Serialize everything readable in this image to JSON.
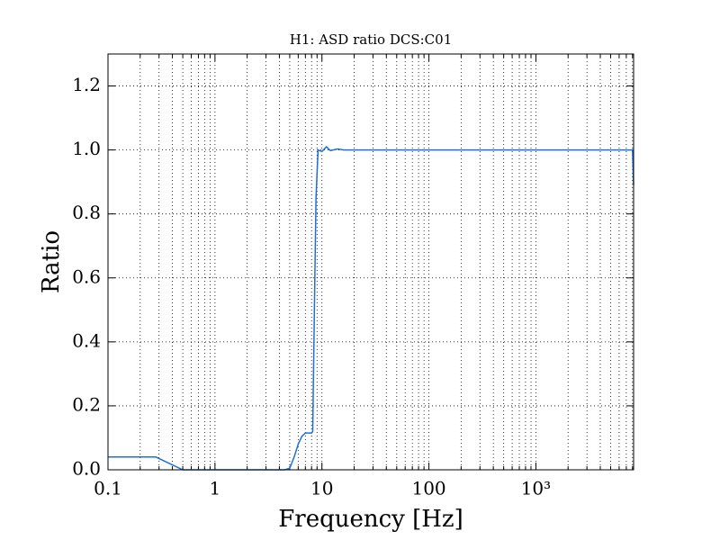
{
  "chart_data": {
    "type": "line",
    "title": "H1: ASD ratio DCS:C01",
    "xlabel": "Frequency [Hz]",
    "ylabel": "Ratio",
    "xscale": "log",
    "grid": true,
    "minor_grid": true,
    "xlim": [
      0.1,
      8192
    ],
    "ylim": [
      0,
      1.3
    ],
    "xticks": [
      0.1,
      1,
      10,
      100,
      {
        "value": 1000,
        "label": "10³"
      }
    ],
    "yticks": [
      {
        "value": 0,
        "label": "0.0"
      },
      0.2,
      0.4,
      0.6,
      0.8,
      {
        "value": 1,
        "label": "1.0"
      },
      1.2
    ],
    "series": [
      {
        "name": "ratio",
        "color": "#1f6fd6",
        "x": [
          0.1,
          0.28,
          0.5,
          4.5,
          5.0,
          5.5,
          6.0,
          6.5,
          7.0,
          8.0,
          8.2,
          8.5,
          8.8,
          9.2,
          10,
          11,
          12,
          14,
          16,
          100,
          1000,
          8000,
          8192
        ],
        "values": [
          0.04,
          0.04,
          0.0,
          0.0,
          0.005,
          0.04,
          0.08,
          0.105,
          0.115,
          0.115,
          0.12,
          0.5,
          0.85,
          1.0,
          0.995,
          1.01,
          0.998,
          1.003,
          1.0,
          1.0,
          1.0,
          1.0,
          0.89
        ]
      }
    ]
  }
}
